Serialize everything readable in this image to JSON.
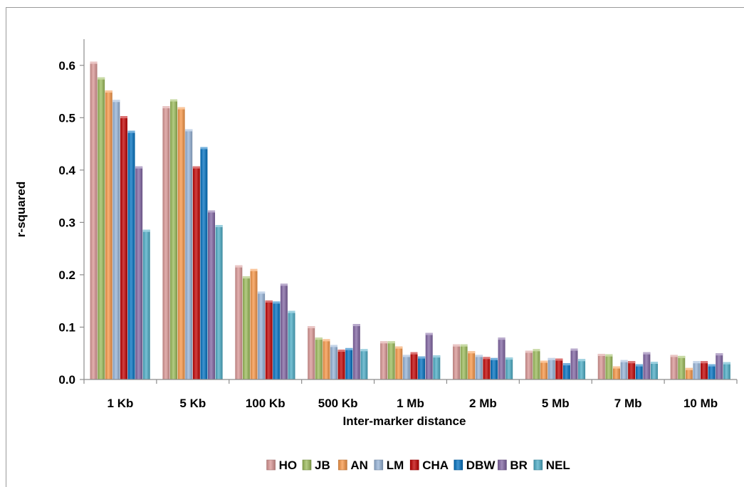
{
  "chart_data": {
    "type": "bar",
    "xlabel": "Inter-marker distance",
    "ylabel": "r-squared",
    "ylim": [
      0,
      0.65
    ],
    "yticks": [
      "0.0",
      "0.1",
      "0.2",
      "0.3",
      "0.4",
      "0.5",
      "0.6"
    ],
    "grid": false,
    "legend_position": "bottom",
    "categories": [
      "1 Kb",
      "5 Kb",
      "100 Kb",
      "500 Kb",
      "1 Mb",
      "2 Mb",
      "5 Mb",
      "7 Mb",
      "10 Mb"
    ],
    "series": [
      {
        "name": "HO",
        "color": "#d99694",
        "values": [
          0.607,
          0.522,
          0.218,
          0.102,
          0.073,
          0.067,
          0.055,
          0.049,
          0.047
        ]
      },
      {
        "name": "JB",
        "color": "#9bbb59",
        "values": [
          0.577,
          0.535,
          0.197,
          0.08,
          0.073,
          0.067,
          0.058,
          0.048,
          0.045
        ]
      },
      {
        "name": "AN",
        "color": "#f79646",
        "values": [
          0.552,
          0.52,
          0.211,
          0.077,
          0.063,
          0.054,
          0.036,
          0.025,
          0.022
        ]
      },
      {
        "name": "LM",
        "color": "#95b3d7",
        "values": [
          0.534,
          0.478,
          0.168,
          0.066,
          0.047,
          0.047,
          0.041,
          0.037,
          0.035
        ]
      },
      {
        "name": "CHA",
        "color": "#c00000",
        "values": [
          0.503,
          0.407,
          0.151,
          0.057,
          0.052,
          0.043,
          0.04,
          0.035,
          0.035
        ]
      },
      {
        "name": "DBW",
        "color": "#0070c0",
        "values": [
          0.475,
          0.444,
          0.149,
          0.06,
          0.044,
          0.041,
          0.031,
          0.029,
          0.029
        ]
      },
      {
        "name": "BR",
        "color": "#8064a2",
        "values": [
          0.407,
          0.323,
          0.183,
          0.106,
          0.089,
          0.08,
          0.059,
          0.052,
          0.05
        ]
      },
      {
        "name": "NEL",
        "color": "#4bacc6",
        "values": [
          0.286,
          0.295,
          0.131,
          0.058,
          0.046,
          0.042,
          0.039,
          0.034,
          0.033
        ]
      }
    ]
  }
}
